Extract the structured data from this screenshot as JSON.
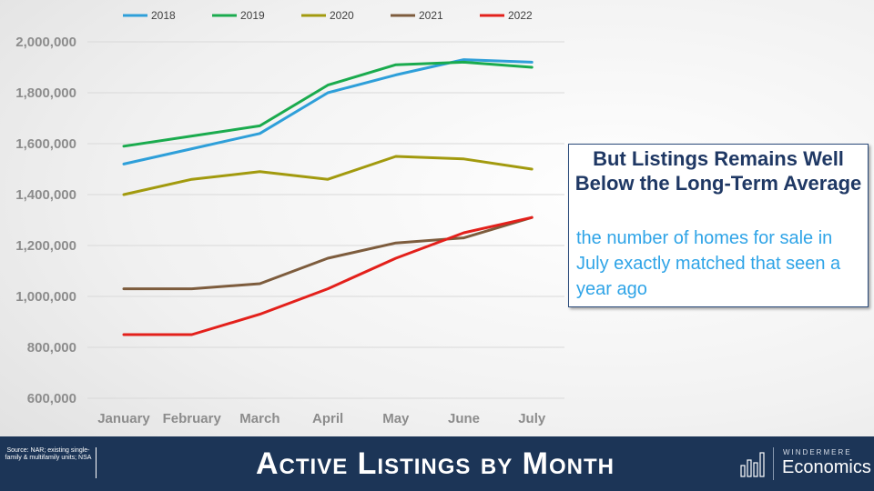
{
  "chart_data": {
    "type": "line",
    "categories": [
      "January",
      "February",
      "March",
      "April",
      "May",
      "June",
      "July"
    ],
    "series": [
      {
        "name": "2018",
        "color": "#2e9fd9",
        "values": [
          1520000,
          1580000,
          1640000,
          1800000,
          1870000,
          1930000,
          1920000
        ]
      },
      {
        "name": "2019",
        "color": "#1aab4e",
        "values": [
          1590000,
          1630000,
          1670000,
          1830000,
          1910000,
          1920000,
          1900000
        ]
      },
      {
        "name": "2020",
        "color": "#a29a0e",
        "values": [
          1400000,
          1460000,
          1490000,
          1460000,
          1550000,
          1540000,
          1500000
        ]
      },
      {
        "name": "2021",
        "color": "#7d5c3d",
        "values": [
          1030000,
          1030000,
          1050000,
          1150000,
          1210000,
          1230000,
          1310000
        ]
      },
      {
        "name": "2022",
        "color": "#e3201b",
        "values": [
          850000,
          850000,
          930000,
          1030000,
          1150000,
          1250000,
          1310000
        ]
      }
    ],
    "ylim": [
      600000,
      2000000
    ],
    "yticks": [
      600000,
      800000,
      1000000,
      1200000,
      1400000,
      1600000,
      1800000,
      2000000
    ],
    "ytick_labels": [
      "600,000",
      "800,000",
      "1,000,000",
      "1,200,000",
      "1,400,000",
      "1,600,000",
      "1,800,000",
      "2,000,000"
    ],
    "legend_position": "top",
    "grid": "horizontal"
  },
  "callout": {
    "title": "But Listings Remains Well Below the Long-Term Average",
    "body": "the number of homes for sale in July exactly matched that seen a year ago"
  },
  "footer": {
    "source": "Source: NAR; existing single-family & multifamily units; NSA",
    "title": "Active Listings by Month",
    "logo_top": "WINDERMERE",
    "logo_main": "Economics"
  }
}
